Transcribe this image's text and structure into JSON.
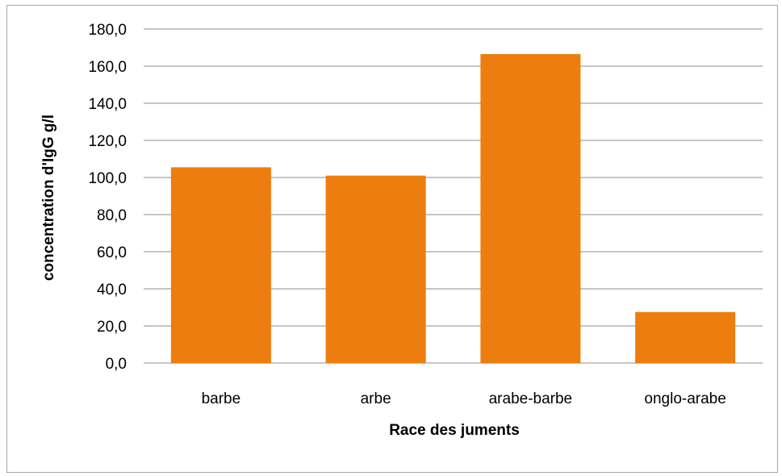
{
  "chart_data": {
    "type": "bar",
    "title": "",
    "xlabel": "Race des juments",
    "ylabel": "concentration d'IgG g/l",
    "categories": [
      "barbe",
      "arbe",
      "arabe-barbe",
      "onglo-arabe"
    ],
    "series": [
      {
        "values": [
          105.5,
          101.0,
          166.5,
          27.5
        ]
      }
    ],
    "ylim": [
      0,
      180
    ],
    "yticks": [
      0,
      20,
      40,
      60,
      80,
      100,
      120,
      140,
      160,
      180
    ],
    "ytick_labels": [
      "0,0",
      "20,0",
      "40,0",
      "60,0",
      "80,0",
      "100,0",
      "120,0",
      "140,0",
      "160,0",
      "180,0"
    ],
    "grid": true,
    "legend": "none",
    "bar_color": "#ed7d0e"
  }
}
